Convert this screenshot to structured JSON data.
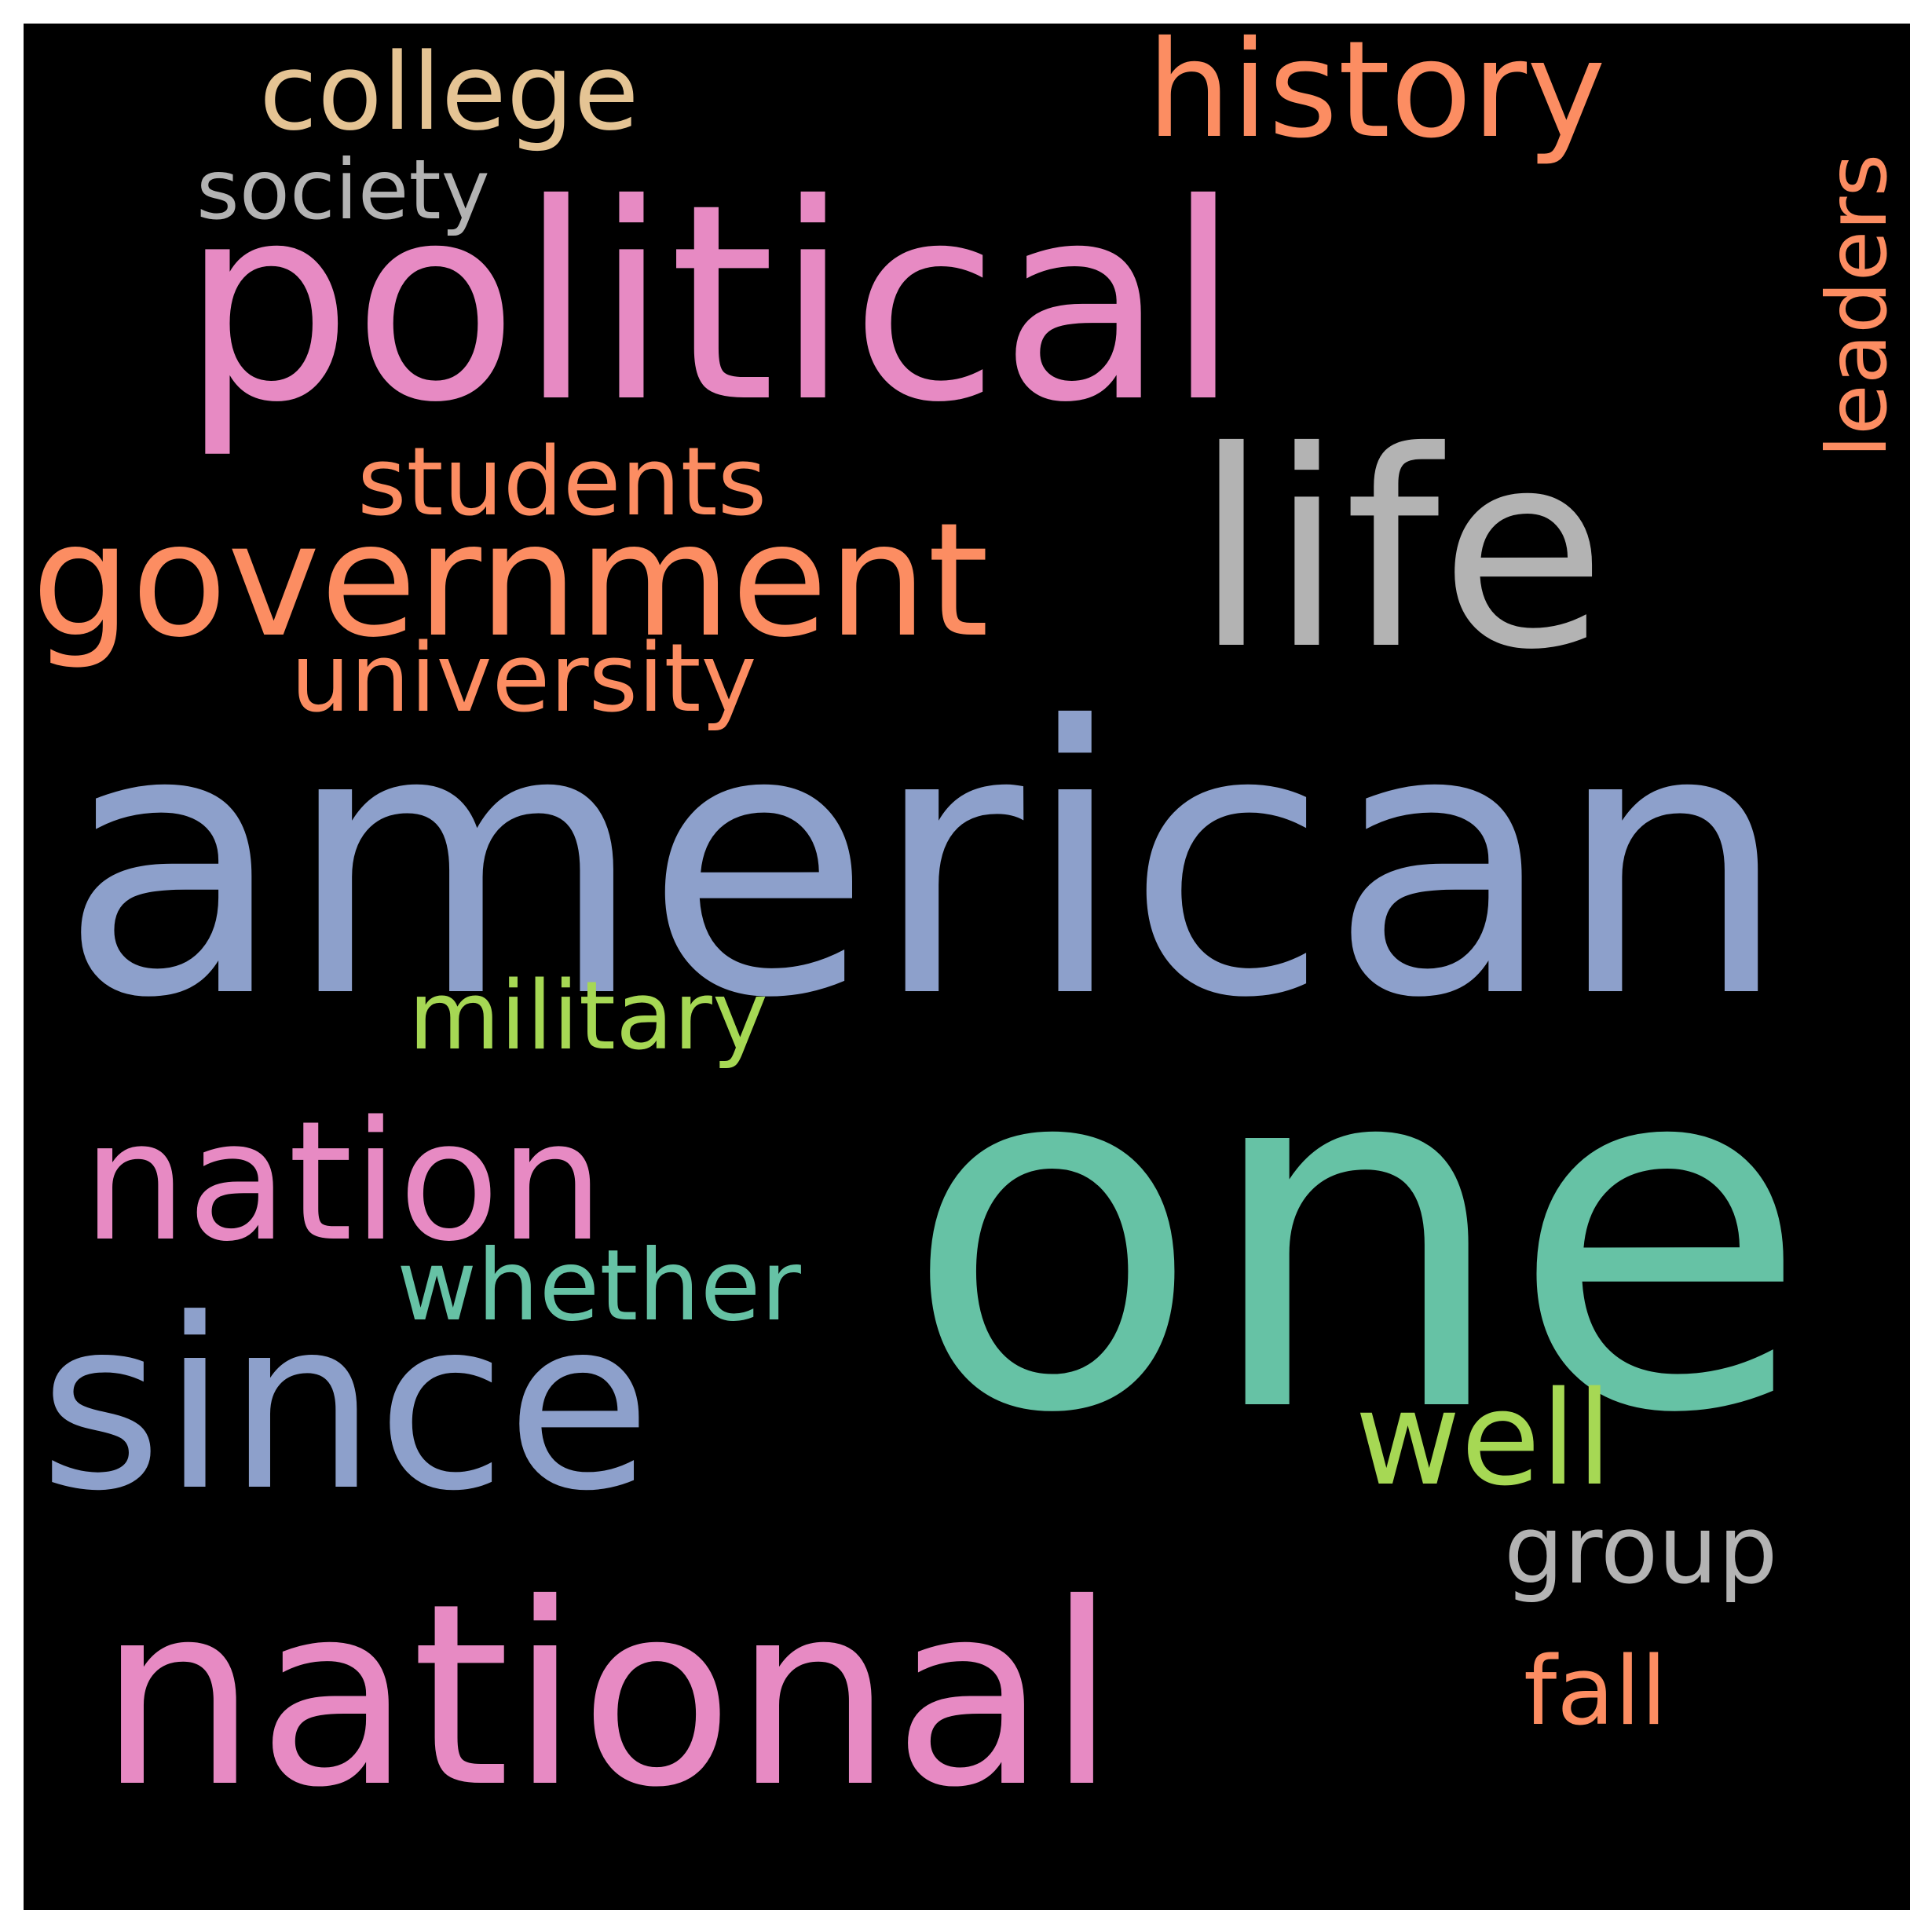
{
  "words": {
    "one": {
      "text": "one",
      "color": "#66c2a5"
    },
    "american": {
      "text": "american",
      "color": "#8da0cb"
    },
    "political": {
      "text": "political",
      "color": "#e78ac3"
    },
    "national": {
      "text": "national",
      "color": "#e78ac3"
    },
    "life": {
      "text": "life",
      "color": "#b3b3b3"
    },
    "since": {
      "text": "since",
      "color": "#8da0cb"
    },
    "government": {
      "text": "government",
      "color": "#fc8d62"
    },
    "nation": {
      "text": "nation",
      "color": "#e78ac3"
    },
    "history": {
      "text": "history",
      "color": "#fc8d62"
    },
    "well": {
      "text": "well",
      "color": "#a6d854"
    },
    "college": {
      "text": "college",
      "color": "#e5c494"
    },
    "whether": {
      "text": "whether",
      "color": "#66c2a5"
    },
    "military": {
      "text": "military",
      "color": "#a6d854"
    },
    "university": {
      "text": "university",
      "color": "#fc8d62"
    },
    "students": {
      "text": "students",
      "color": "#fc8d62"
    },
    "group": {
      "text": "group",
      "color": "#b3b3b3"
    },
    "fall": {
      "text": "fall",
      "color": "#fc8d62"
    },
    "society": {
      "text": "society",
      "color": "#b3b3b3"
    },
    "leaders": {
      "text": "leaders",
      "color": "#fc8d62"
    }
  },
  "background_color": "#000000"
}
